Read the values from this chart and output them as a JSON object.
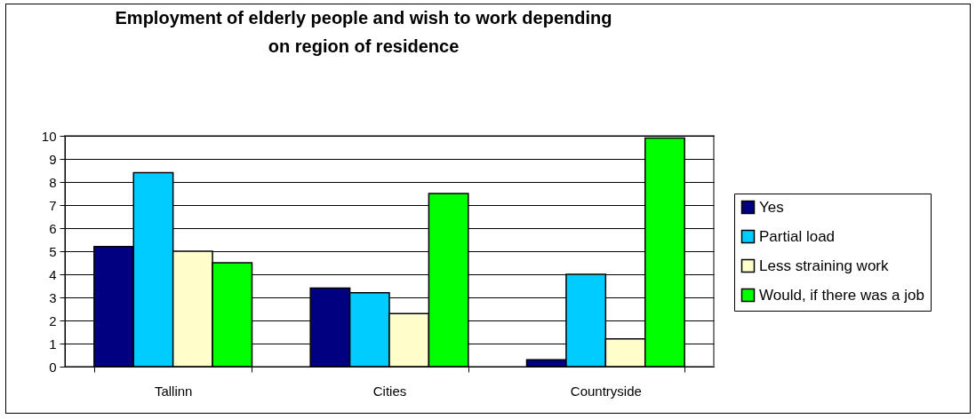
{
  "chart_data": {
    "type": "bar",
    "title": "Employment of elderly people and wish to work depending on region of residence",
    "categories": [
      "Tallinn",
      "Cities",
      "Countryside"
    ],
    "series": [
      {
        "name": "Yes",
        "color": "#000080",
        "values": [
          5.2,
          3.4,
          0.3
        ]
      },
      {
        "name": "Partial load",
        "color": "#00ccff",
        "values": [
          8.4,
          3.2,
          4.0
        ]
      },
      {
        "name": "Less straining work",
        "color": "#ffffcc",
        "values": [
          5.0,
          2.3,
          1.2
        ]
      },
      {
        "name": "Would, if there was a job",
        "color": "#00ff00",
        "values": [
          4.5,
          7.5,
          9.9
        ]
      }
    ],
    "ylim": [
      0,
      10
    ],
    "yticks": [
      0,
      1,
      2,
      3,
      4,
      5,
      6,
      7,
      8,
      9,
      10
    ],
    "grid": "y",
    "legend": "right"
  }
}
